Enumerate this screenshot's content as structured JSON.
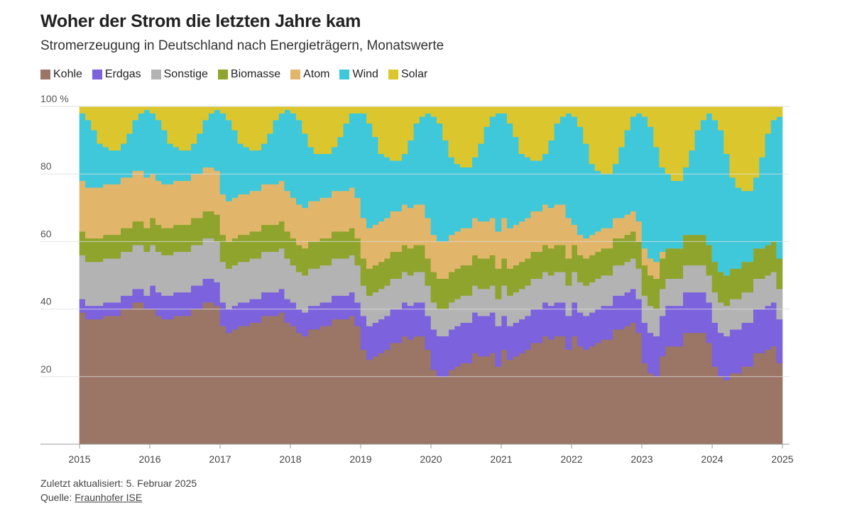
{
  "title": "Woher der Strom die letzten Jahre kam",
  "subtitle": "Stromerzeugung in Deutschland nach Energieträgern, Monatswerte",
  "footer": {
    "updated": "Zuletzt aktualisiert: 5. Februar 2025",
    "source_label": "Quelle: ",
    "source_link": "Fraunhofer ISE"
  },
  "chart_data": {
    "type": "area",
    "stacked": true,
    "ylim": [
      0,
      100
    ],
    "yticks": [
      {
        "value": 20,
        "label": "20"
      },
      {
        "value": 40,
        "label": "40"
      },
      {
        "value": 60,
        "label": "60"
      },
      {
        "value": 80,
        "label": "80"
      },
      {
        "value": 100,
        "label": "100 %"
      }
    ],
    "xticks": [
      "2015",
      "2016",
      "2017",
      "2018",
      "2019",
      "2020",
      "2021",
      "2022",
      "2023",
      "2024",
      "2025"
    ],
    "x_start": "2015-01",
    "x_end": "2024-12",
    "frequency": "monthly",
    "grid": true,
    "legend_position": "top-left",
    "series": [
      {
        "name": "Kohle",
        "color": "#9b7565",
        "values": [
          39,
          37,
          37,
          37,
          38,
          38,
          38,
          40,
          40,
          42,
          42,
          40,
          40,
          38,
          37,
          37,
          38,
          38,
          38,
          40,
          40,
          42,
          42,
          41,
          35,
          33,
          34,
          35,
          35,
          36,
          36,
          38,
          38,
          38,
          39,
          36,
          35,
          33,
          32,
          34,
          34,
          35,
          35,
          37,
          37,
          37,
          38,
          35,
          28,
          25,
          26,
          27,
          28,
          30,
          30,
          32,
          31,
          32,
          32,
          28,
          22,
          20,
          20,
          22,
          23,
          24,
          24,
          27,
          26,
          26,
          27,
          23,
          28,
          25,
          26,
          27,
          28,
          30,
          30,
          32,
          31,
          32,
          32,
          28,
          32,
          29,
          28,
          29,
          30,
          31,
          31,
          34,
          34,
          35,
          36,
          33,
          24,
          21,
          20,
          26,
          29,
          29,
          29,
          33,
          33,
          33,
          33,
          30,
          23,
          20,
          19,
          21,
          21,
          23,
          23,
          27,
          27,
          28,
          29,
          24
        ]
      },
      {
        "name": "Erdgas",
        "color": "#7c62dd",
        "values": [
          4,
          4,
          4,
          4,
          4,
          4,
          4,
          4,
          4,
          4,
          4,
          4,
          7,
          7,
          7,
          7,
          7,
          7,
          7,
          7,
          7,
          7,
          7,
          7,
          7,
          7,
          7,
          7,
          7,
          7,
          7,
          7,
          7,
          7,
          7,
          7,
          7,
          7,
          7,
          7,
          7,
          7,
          7,
          7,
          7,
          7,
          7,
          7,
          10,
          10,
          10,
          10,
          10,
          10,
          10,
          10,
          10,
          10,
          10,
          10,
          12,
          12,
          12,
          12,
          12,
          12,
          12,
          12,
          12,
          12,
          12,
          12,
          10,
          10,
          10,
          10,
          10,
          10,
          10,
          10,
          10,
          10,
          10,
          10,
          10,
          10,
          10,
          10,
          10,
          10,
          10,
          10,
          10,
          10,
          10,
          10,
          12,
          12,
          12,
          12,
          12,
          12,
          12,
          12,
          12,
          12,
          12,
          12,
          13,
          13,
          13,
          13,
          13,
          13,
          13,
          13,
          13,
          13,
          13,
          13
        ]
      },
      {
        "name": "Sonstige",
        "color": "#b3b3b3",
        "values": [
          13,
          13,
          13,
          13,
          13,
          13,
          13,
          13,
          13,
          13,
          13,
          13,
          12,
          12,
          12,
          12,
          12,
          12,
          12,
          12,
          12,
          12,
          12,
          12,
          12,
          12,
          12,
          12,
          12,
          12,
          12,
          12,
          12,
          12,
          12,
          12,
          11,
          11,
          11,
          11,
          11,
          11,
          11,
          11,
          11,
          11,
          11,
          11,
          9,
          9,
          9,
          9,
          9,
          9,
          9,
          9,
          9,
          9,
          9,
          9,
          8,
          8,
          8,
          8,
          8,
          8,
          8,
          8,
          8,
          8,
          8,
          8,
          9,
          9,
          9,
          9,
          9,
          9,
          9,
          9,
          9,
          9,
          9,
          9,
          9,
          9,
          9,
          9,
          9,
          9,
          9,
          9,
          9,
          9,
          9,
          9,
          8,
          8,
          8,
          8,
          8,
          8,
          8,
          8,
          8,
          8,
          8,
          8,
          9,
          9,
          9,
          9,
          9,
          9,
          9,
          9,
          9,
          9,
          9,
          9
        ]
      },
      {
        "name": "Biomasse",
        "color": "#8ea42c",
        "values": [
          7,
          7,
          7,
          7,
          7,
          7,
          7,
          7,
          7,
          7,
          7,
          7,
          8,
          8,
          8,
          8,
          8,
          8,
          8,
          8,
          8,
          8,
          8,
          8,
          8,
          8,
          8,
          8,
          8,
          8,
          8,
          8,
          8,
          8,
          8,
          8,
          8,
          8,
          8,
          8,
          8,
          8,
          8,
          8,
          8,
          8,
          8,
          8,
          8,
          8,
          8,
          8,
          8,
          8,
          8,
          8,
          8,
          8,
          8,
          8,
          9,
          9,
          9,
          9,
          9,
          9,
          9,
          9,
          9,
          9,
          9,
          9,
          8,
          8,
          8,
          8,
          8,
          8,
          8,
          8,
          8,
          8,
          8,
          8,
          8,
          8,
          8,
          8,
          8,
          8,
          8,
          8,
          8,
          8,
          8,
          8,
          9,
          9,
          9,
          9,
          9,
          9,
          9,
          9,
          9,
          9,
          9,
          9,
          9,
          9,
          9,
          9,
          9,
          9,
          9,
          9,
          9,
          9,
          9,
          9
        ]
      },
      {
        "name": "Atom",
        "color": "#e2b66a",
        "values": [
          15,
          15,
          15,
          15,
          15,
          15,
          15,
          15,
          15,
          15,
          15,
          15,
          13,
          13,
          13,
          13,
          13,
          13,
          13,
          13,
          13,
          13,
          13,
          13,
          12,
          12,
          12,
          12,
          12,
          12,
          12,
          12,
          12,
          12,
          12,
          12,
          12,
          12,
          12,
          12,
          12,
          12,
          12,
          12,
          12,
          12,
          12,
          12,
          12,
          12,
          12,
          12,
          12,
          12,
          12,
          12,
          12,
          12,
          12,
          12,
          11,
          11,
          11,
          11,
          11,
          11,
          11,
          11,
          11,
          11,
          11,
          11,
          12,
          12,
          12,
          12,
          12,
          12,
          12,
          12,
          12,
          12,
          12,
          12,
          6,
          6,
          6,
          6,
          6,
          6,
          6,
          6,
          6,
          6,
          6,
          6,
          5,
          5,
          5,
          2,
          0,
          0,
          0,
          0,
          0,
          0,
          0,
          0,
          0,
          0,
          0,
          0,
          0,
          0,
          0,
          0,
          0,
          0,
          0,
          0
        ]
      },
      {
        "name": "Wind",
        "color": "#3ec8d9",
        "values": [
          20,
          20,
          17,
          13,
          11,
          10,
          10,
          10,
          13,
          15,
          17,
          20,
          18,
          18,
          16,
          12,
          10,
          9,
          9,
          9,
          12,
          14,
          16,
          18,
          24,
          24,
          20,
          15,
          14,
          12,
          12,
          12,
          15,
          19,
          20,
          24,
          25,
          25,
          22,
          16,
          14,
          13,
          13,
          13,
          16,
          20,
          22,
          25,
          31,
          31,
          26,
          20,
          18,
          15,
          15,
          15,
          20,
          24,
          26,
          31,
          35,
          35,
          30,
          23,
          20,
          18,
          18,
          18,
          23,
          28,
          30,
          35,
          31,
          31,
          26,
          20,
          18,
          15,
          15,
          15,
          20,
          24,
          26,
          31,
          32,
          32,
          28,
          21,
          18,
          16,
          16,
          16,
          21,
          25,
          28,
          32,
          39,
          39,
          34,
          25,
          22,
          20,
          20,
          20,
          25,
          31,
          34,
          39,
          42,
          42,
          36,
          27,
          24,
          21,
          21,
          21,
          27,
          33,
          36,
          42
        ]
      },
      {
        "name": "Solar",
        "color": "#dcc62e",
        "values": [
          2,
          4,
          7,
          11,
          12,
          13,
          13,
          11,
          8,
          4,
          2,
          1,
          2,
          4,
          7,
          11,
          12,
          13,
          13,
          11,
          8,
          4,
          2,
          1,
          2,
          4,
          7,
          11,
          12,
          13,
          13,
          11,
          8,
          4,
          2,
          1,
          2,
          4,
          8,
          12,
          14,
          14,
          14,
          12,
          9,
          5,
          2,
          2,
          2,
          5,
          9,
          14,
          15,
          16,
          16,
          14,
          10,
          5,
          3,
          2,
          3,
          5,
          10,
          15,
          17,
          18,
          18,
          15,
          11,
          6,
          3,
          2,
          2,
          5,
          9,
          14,
          15,
          16,
          16,
          14,
          10,
          5,
          3,
          2,
          3,
          6,
          11,
          17,
          19,
          20,
          20,
          17,
          12,
          7,
          3,
          2,
          3,
          6,
          12,
          18,
          20,
          22,
          22,
          18,
          13,
          7,
          4,
          2,
          4,
          7,
          14,
          21,
          24,
          25,
          25,
          21,
          15,
          8,
          4,
          3
        ]
      }
    ]
  }
}
